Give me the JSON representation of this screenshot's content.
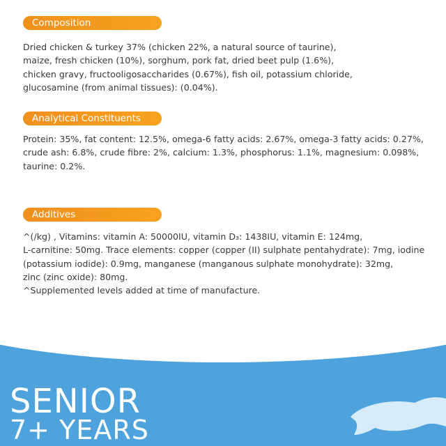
{
  "sections": [
    {
      "title": "Composition",
      "lines": [
        "Dried chicken & turkey 37% (chicken 22%, a natural source of taurine),",
        "maize, fresh chicken (10%), sorghum, pork fat, dried beet pulp (1.6%),",
        "chicken gravy, fructooligosaccharides (0.67%), fish oil, potassium chloride,",
        "glucosamine (from animal tissues): (0.04%)."
      ]
    },
    {
      "title": "Analytical Constituents",
      "lines": [
        "Protein: 35%, fat content: 12.5%, omega-6 fatty acids: 2.67%, omega-3 fatty acids: 0.27%,",
        "crude ash: 6.8%, crude fibre: 2%, calcium: 1.3%, phosphorus: 1.1%, magnesium: 0.098%,",
        "taurine: 0.2%."
      ]
    },
    {
      "title": "Additives",
      "lines": [
        "^(/kg) , Vitamins: vitamin A: 50000IU, vitamin D₃: 1438IU, vitamin E: 124mg,",
        "L-carnitine: 50mg. Trace elements: copper (copper (II) sulphate pentahydrate): 7mg, iodine",
        "(potassium iodide): 0.9mg, manganese (manganous sulphate monohydrate): 32mg,",
        "zinc (zinc oxide): 80mg.",
        "^Supplemented levels added at time of manufacture."
      ]
    }
  ],
  "badge": {
    "line1": "SENIOR",
    "line2": "7+ YEARS"
  }
}
